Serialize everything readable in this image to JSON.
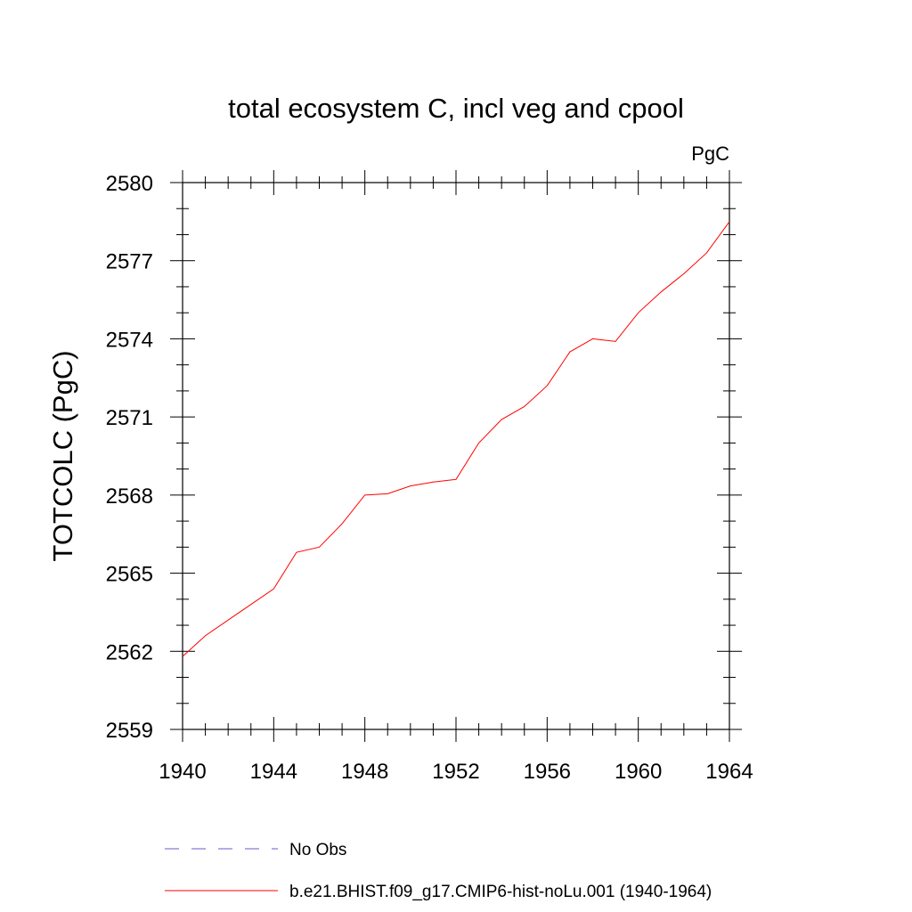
{
  "chart_data": {
    "type": "line",
    "title": "total ecosystem C, incl veg and cpool",
    "units_label": "PgC",
    "xlabel": "",
    "ylabel": "TOTCOLC  (PgC)",
    "xlim": [
      1940,
      1964
    ],
    "ylim": [
      2559,
      2580
    ],
    "x_ticks": [
      "1940",
      "1944",
      "1948",
      "1952",
      "1956",
      "1960",
      "1964"
    ],
    "y_ticks": [
      "2559",
      "2562",
      "2565",
      "2568",
      "2571",
      "2574",
      "2577",
      "2580"
    ],
    "grid": false,
    "legend_position": "bottom",
    "series": [
      {
        "name": "No Obs",
        "color": "#6a5acd",
        "dash": true,
        "x": [],
        "values": []
      },
      {
        "name": "b.e21.BHIST.f09_g17.CMIP6-hist-noLu.001 (1940-1964)",
        "color": "#ff0000",
        "dash": false,
        "x": [
          1940,
          1941,
          1942,
          1943,
          1944,
          1945,
          1946,
          1947,
          1948,
          1949,
          1950,
          1951,
          1952,
          1953,
          1954,
          1955,
          1956,
          1957,
          1958,
          1959,
          1960,
          1961,
          1962,
          1963,
          1964
        ],
        "values": [
          2561.8,
          2562.6,
          2563.2,
          2563.8,
          2564.4,
          2565.8,
          2566.0,
          2566.9,
          2568.0,
          2568.05,
          2568.35,
          2568.5,
          2568.6,
          2570.0,
          2570.9,
          2571.4,
          2572.2,
          2573.5,
          2574.0,
          2573.9,
          2575.0,
          2575.8,
          2576.5,
          2577.3,
          2578.5
        ]
      }
    ]
  }
}
